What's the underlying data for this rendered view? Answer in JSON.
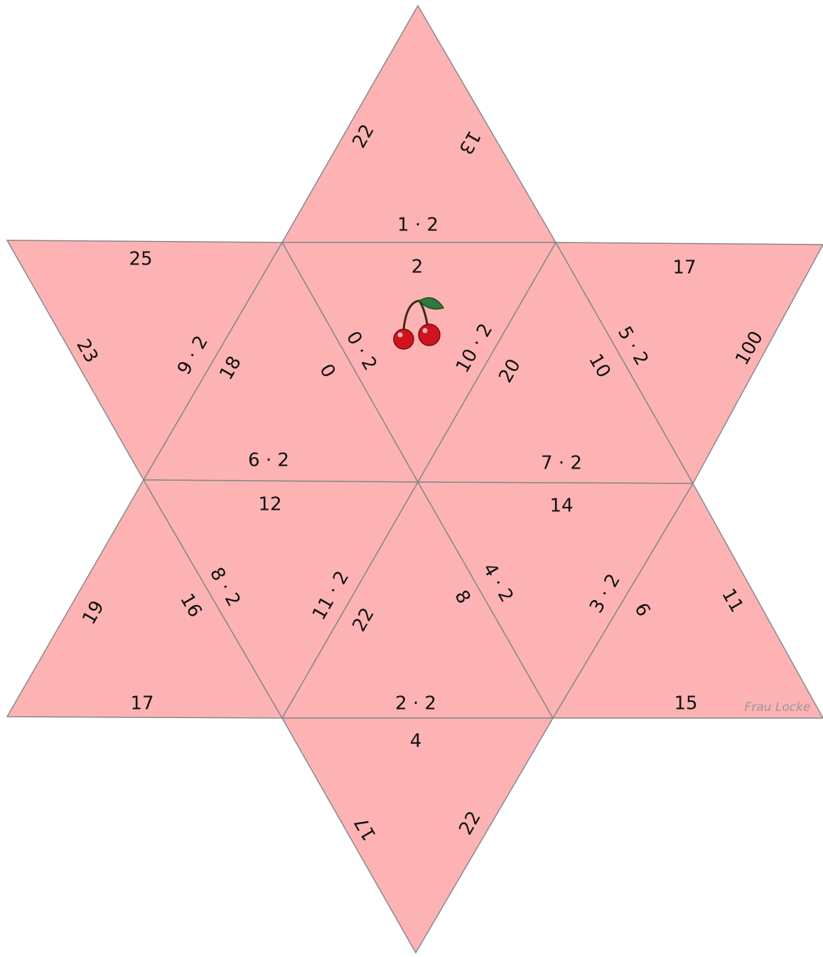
{
  "pieces": [
    [
      "22",
      "13",
      "1 · 2"
    ],
    [
      "2",
      "0 · 2",
      "10 · 2"
    ],
    [
      "25",
      "23",
      "9 · 2"
    ],
    [
      "18",
      "0",
      "6 · 2"
    ],
    [
      "20",
      "10",
      "7 · 2"
    ],
    [
      "17",
      "5 · 2",
      "100"
    ],
    [
      "12",
      "8 · 2",
      "11 · 2"
    ],
    [
      "19",
      "16",
      "17"
    ],
    [
      "22",
      "8",
      "2 · 2"
    ],
    [
      "14",
      "4 · 2",
      "3 · 2"
    ],
    [
      "6",
      "11",
      "15"
    ],
    [
      "4",
      "17",
      "22"
    ]
  ],
  "watermark": "Frau Locke"
}
